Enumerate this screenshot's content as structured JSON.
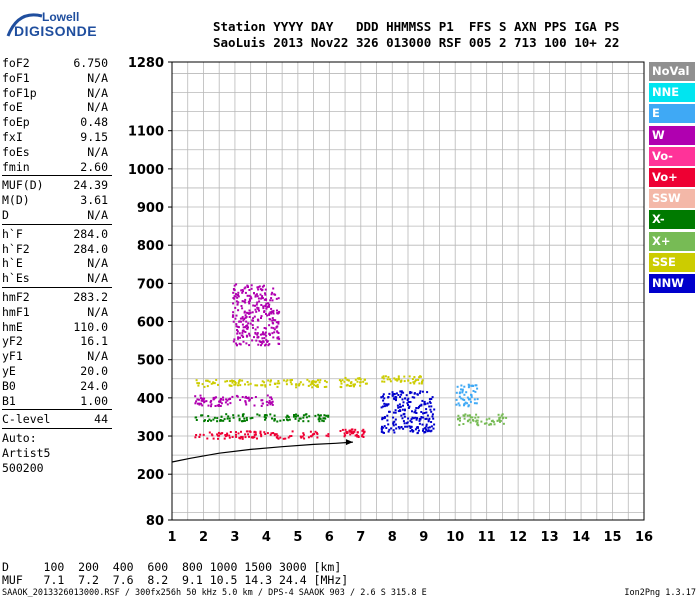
{
  "logo": {
    "line1": "Lowell",
    "line2": "DIGISONDE"
  },
  "header": {
    "line1": "Station YYYY DAY   DDD HHMMSS P1  FFS S AXN PPS IGA PS",
    "line2": "SaoLuis 2013 Nov22 326 013000 RSF 005 2 713 100 10+ 22"
  },
  "params": [
    {
      "k": "foF2",
      "v": "6.750"
    },
    {
      "k": "foF1",
      "v": "N/A"
    },
    {
      "k": "foF1p",
      "v": "N/A"
    },
    {
      "k": "foE",
      "v": "N/A"
    },
    {
      "k": "foEp",
      "v": "0.48"
    },
    {
      "k": "fxI",
      "v": "9.15"
    },
    {
      "k": "foEs",
      "v": "N/A"
    },
    {
      "k": "fmin",
      "v": "2.60"
    },
    {
      "k": "MUF(D)",
      "v": "24.39"
    },
    {
      "k": "M(D)",
      "v": "3.61"
    },
    {
      "k": "D",
      "v": "N/A"
    },
    {
      "k": "h`F",
      "v": "284.0"
    },
    {
      "k": "h`F2",
      "v": "284.0"
    },
    {
      "k": "h`E",
      "v": "N/A"
    },
    {
      "k": "h`Es",
      "v": "N/A"
    },
    {
      "k": "hmF2",
      "v": "283.2"
    },
    {
      "k": "hmF1",
      "v": "N/A"
    },
    {
      "k": "hmE",
      "v": "110.0"
    },
    {
      "k": "yF2",
      "v": "16.1"
    },
    {
      "k": "yF1",
      "v": "N/A"
    },
    {
      "k": "yE",
      "v": "20.0"
    },
    {
      "k": "B0",
      "v": "24.0"
    },
    {
      "k": "B1",
      "v": "1.00"
    },
    {
      "k": "C-level",
      "v": "44"
    },
    {
      "k": "Auto:",
      "v": ""
    },
    {
      "k": "Artist5",
      "v": ""
    },
    {
      "k": "500200",
      "v": ""
    }
  ],
  "legend": [
    {
      "label": "NoVal",
      "color": "#909090"
    },
    {
      "label": "NNE",
      "color": "#00e5f0"
    },
    {
      "label": "E",
      "color": "#3fa9f5"
    },
    {
      "label": "W",
      "color": "#b000b0"
    },
    {
      "label": "Vo-",
      "color": "#ff3399"
    },
    {
      "label": "Vo+",
      "color": "#ee0033"
    },
    {
      "label": "SSW",
      "color": "#f4b8a8"
    },
    {
      "label": "X-",
      "color": "#007a00"
    },
    {
      "label": "X+",
      "color": "#77bb55"
    },
    {
      "label": "SSE",
      "color": "#cccc00"
    },
    {
      "label": "NNW",
      "color": "#0000cc"
    }
  ],
  "chart_data": {
    "type": "scatter",
    "xlabel": "",
    "ylabel": "",
    "xlim": [
      1,
      16
    ],
    "ylim": [
      80,
      1280
    ],
    "x_ticks": [
      1,
      2,
      3,
      4,
      5,
      6,
      7,
      8,
      9,
      10,
      11,
      12,
      13,
      14,
      15,
      16
    ],
    "y_ticks": [
      80,
      200,
      300,
      400,
      500,
      600,
      700,
      800,
      900,
      1000,
      1100,
      1280
    ],
    "grid": true,
    "legend_position": "right",
    "profile_curve": {
      "x": [
        1.0,
        1.6,
        2.5,
        3.5,
        4.5,
        5.5,
        6.2,
        6.75
      ],
      "y": [
        232,
        242,
        255,
        265,
        272,
        278,
        281,
        284
      ]
    },
    "traces": [
      {
        "polarization": "SSE",
        "x_range": [
          1.7,
          5.9
        ],
        "y_range": [
          430,
          450
        ]
      },
      {
        "polarization": "SSE",
        "x_range": [
          6.3,
          7.2
        ],
        "y_range": [
          430,
          455
        ]
      },
      {
        "polarization": "SSE",
        "x_range": [
          7.6,
          9.0
        ],
        "y_range": [
          440,
          460
        ]
      },
      {
        "polarization": "W",
        "x_range": [
          1.7,
          4.2
        ],
        "y_range": [
          380,
          410
        ]
      },
      {
        "polarization": "X-",
        "x_range": [
          1.7,
          6.0
        ],
        "y_range": [
          340,
          360
        ]
      },
      {
        "polarization": "Vo+",
        "x_range": [
          1.7,
          6.0
        ],
        "y_range": [
          295,
          315
        ]
      },
      {
        "polarization": "Vo+",
        "x_range": [
          6.3,
          7.1
        ],
        "y_range": [
          300,
          320
        ]
      },
      {
        "polarization": "NNW",
        "x_range": [
          7.6,
          9.3
        ],
        "y_range": [
          310,
          420
        ]
      },
      {
        "polarization": "W",
        "x_range": [
          2.9,
          4.4
        ],
        "y_range": [
          540,
          700
        ]
      },
      {
        "polarization": "E",
        "x_range": [
          10.0,
          10.7
        ],
        "y_range": [
          380,
          440
        ]
      },
      {
        "polarization": "X+",
        "x_range": [
          10.0,
          11.6
        ],
        "y_range": [
          330,
          360
        ]
      }
    ]
  },
  "bottom": {
    "line1": "D     100  200  400  600  800 1000 1500 3000 [km]",
    "line2": "MUF   7.1  7.2  7.6  8.2  9.1 10.5 14.3 24.4 [MHz]",
    "footer": "SAAOK_2013326013000.RSF / 300fx256h 50 kHz 5.0 km / DPS-4 SAAOK 903 / 2.6 S 315.8 E",
    "version": "Ion2Png 1.3.17"
  }
}
